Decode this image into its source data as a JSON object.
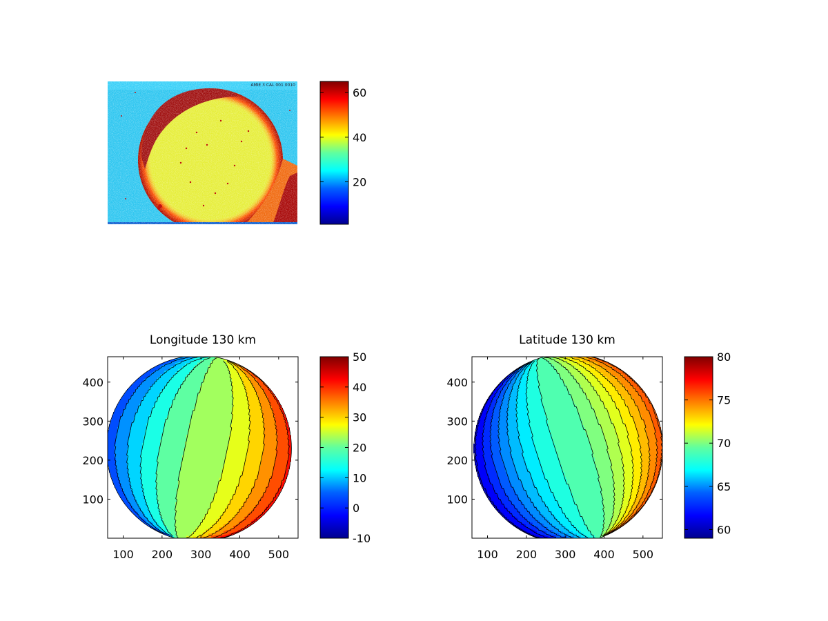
{
  "colormap": [
    "#00008f",
    "#0000ff",
    "#0080ff",
    "#00ffff",
    "#80ff80",
    "#ffff00",
    "#ff8000",
    "#ff0000",
    "#800000"
  ],
  "chart_data": [
    {
      "type": "heatmap",
      "title": "",
      "xlabel": "",
      "ylabel": "",
      "colorbar": {
        "range": [
          1,
          65
        ],
        "ticks": [
          20,
          40,
          60
        ]
      },
      "watermark_text": "AMIE 3 CAL 001 0010"
    },
    {
      "type": "heatmap",
      "subtype": "filled-contour",
      "title": "Longitude 130 km",
      "xlabel": "",
      "ylabel": "",
      "xlim": [
        60,
        550
      ],
      "ylim": [
        0,
        465
      ],
      "xticks": [
        100,
        200,
        300,
        400,
        500
      ],
      "yticks": [
        100,
        200,
        300,
        400
      ],
      "colorbar": {
        "range": [
          -10,
          50
        ],
        "ticks": [
          50,
          40,
          30,
          20,
          10,
          0,
          -10
        ]
      },
      "disk": {
        "center": [
          295,
          230
        ],
        "radius": 238
      },
      "contour_levels": [
        -8,
        -4,
        0,
        4,
        8,
        12,
        16,
        20,
        24,
        28,
        32,
        36,
        40,
        44
      ],
      "field": {
        "center_value": 21,
        "gradient_direction_deg": -12,
        "value_per_radius": 20
      }
    },
    {
      "type": "heatmap",
      "subtype": "filled-contour",
      "title": "Latitude 130 km",
      "xlabel": "",
      "ylabel": "",
      "xlim": [
        60,
        550
      ],
      "ylim": [
        0,
        465
      ],
      "xticks": [
        100,
        200,
        300,
        400,
        500
      ],
      "yticks": [
        100,
        200,
        300,
        400
      ],
      "colorbar": {
        "range": [
          59,
          80
        ],
        "ticks": [
          80,
          75,
          70,
          65,
          60
        ]
      },
      "disk": {
        "center": [
          308,
          230
        ],
        "radius": 243
      },
      "contour_levels": [
        59,
        60,
        61,
        62,
        63,
        64,
        65,
        66,
        67,
        68,
        69,
        70,
        71,
        72,
        73,
        74,
        75,
        76,
        77,
        78
      ],
      "field": {
        "center_value": 68.3,
        "gradient_direction_deg": 18,
        "value_per_radius": 7.5
      }
    }
  ]
}
